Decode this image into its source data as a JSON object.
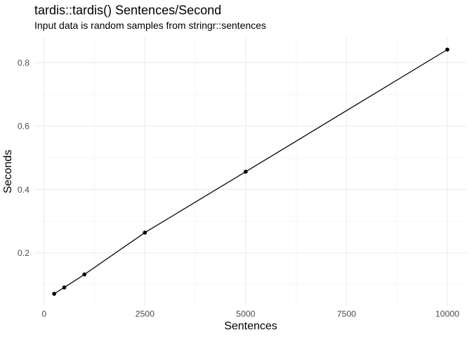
{
  "chart_data": {
    "type": "line",
    "title": "tardis::tardis() Sentences/Second",
    "subtitle": "Input data is random samples from stringr::sentences",
    "xlabel": "Sentences",
    "ylabel": "Seconds",
    "x": [
      250,
      500,
      1000,
      2500,
      5000,
      10000
    ],
    "y": [
      0.071,
      0.091,
      0.132,
      0.264,
      0.456,
      0.841
    ],
    "x_ticks": {
      "values": [
        0,
        2500,
        5000,
        7500,
        10000
      ],
      "labels": [
        "0",
        "2500",
        "5000",
        "7500",
        "10000"
      ]
    },
    "y_ticks": {
      "values": [
        0.2,
        0.4,
        0.6,
        0.8
      ],
      "labels": [
        "0.2",
        "0.4",
        "0.6",
        "0.8"
      ]
    },
    "x_minor": [
      1250,
      3750,
      6250,
      8750
    ],
    "y_minor": [
      0.1,
      0.3,
      0.5,
      0.7
    ],
    "xlim": [
      -240,
      10490
    ],
    "ylim": [
      0.033,
      0.881
    ],
    "grid": "major and minor, no panel border, white background",
    "legend": "none",
    "style": {
      "line_color": "#000000",
      "point_color": "#000000",
      "grid_major_color": "#ebebeb",
      "grid_minor_color": "#f5f5f5",
      "tick_text_color": "#4d4d4d",
      "title_text_color": "#000000",
      "background": "#ffffff"
    }
  }
}
